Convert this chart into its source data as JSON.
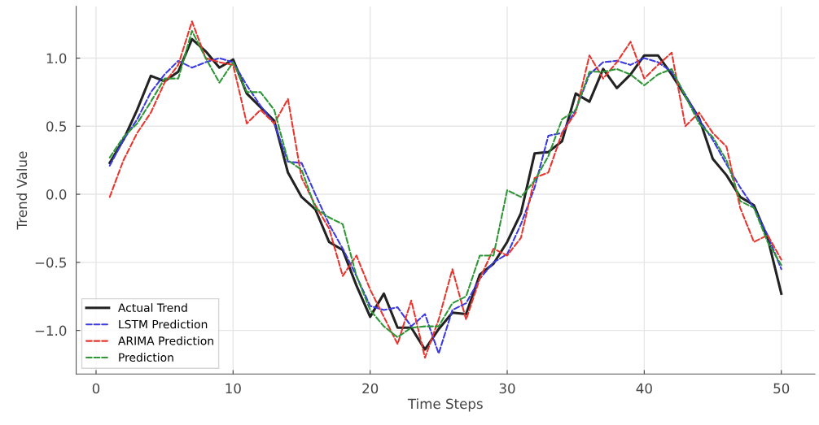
{
  "chart_data": {
    "type": "line",
    "xlabel": "Time Steps",
    "ylabel": "Trend Value",
    "x": [
      1,
      2,
      3,
      4,
      5,
      6,
      7,
      8,
      9,
      10,
      11,
      12,
      13,
      14,
      15,
      16,
      17,
      18,
      19,
      20,
      21,
      22,
      23,
      24,
      25,
      26,
      27,
      28,
      29,
      30,
      31,
      32,
      33,
      34,
      35,
      36,
      37,
      38,
      39,
      40,
      41,
      42,
      43,
      44,
      45,
      46,
      47,
      48,
      49,
      50
    ],
    "series": [
      {
        "name": "Actual Trend",
        "color": "#222222",
        "line_style": "solid",
        "values": [
          0.23,
          0.4,
          0.62,
          0.87,
          0.83,
          0.9,
          1.14,
          1.05,
          0.93,
          0.99,
          0.74,
          0.64,
          0.54,
          0.16,
          -0.02,
          -0.11,
          -0.35,
          -0.41,
          -0.67,
          -0.9,
          -0.73,
          -0.98,
          -0.98,
          -1.14,
          -0.99,
          -0.87,
          -0.88,
          -0.59,
          -0.51,
          -0.35,
          -0.14,
          0.3,
          0.31,
          0.39,
          0.74,
          0.68,
          0.92,
          0.78,
          0.88,
          1.02,
          1.02,
          0.88,
          0.72,
          0.56,
          0.26,
          0.14,
          -0.02,
          -0.08,
          -0.32,
          -0.73
        ]
      },
      {
        "name": "LSTM Prediction",
        "color": "#3a3ae0",
        "line_style": "dashed",
        "values": [
          0.21,
          0.4,
          0.55,
          0.75,
          0.88,
          0.98,
          0.93,
          0.97,
          1.0,
          0.97,
          0.8,
          0.65,
          0.52,
          0.24,
          0.23,
          0.0,
          -0.22,
          -0.4,
          -0.6,
          -0.82,
          -0.85,
          -0.83,
          -0.97,
          -0.88,
          -1.17,
          -0.85,
          -0.8,
          -0.62,
          -0.5,
          -0.44,
          -0.22,
          0.05,
          0.43,
          0.45,
          0.62,
          0.88,
          0.97,
          0.98,
          0.95,
          1.0,
          0.97,
          0.9,
          0.73,
          0.55,
          0.4,
          0.22,
          0.05,
          -0.1,
          -0.3,
          -0.55
        ]
      },
      {
        "name": "ARIMA Prediction",
        "color": "#e8352e",
        "line_style": "dashed",
        "values": [
          -0.02,
          0.25,
          0.45,
          0.6,
          0.82,
          0.95,
          1.27,
          1.0,
          0.97,
          0.95,
          0.52,
          0.62,
          0.52,
          0.7,
          0.12,
          -0.08,
          -0.25,
          -0.6,
          -0.45,
          -0.7,
          -0.9,
          -1.1,
          -0.78,
          -1.2,
          -0.92,
          -0.55,
          -0.92,
          -0.62,
          -0.4,
          -0.45,
          -0.32,
          0.12,
          0.16,
          0.45,
          0.6,
          1.02,
          0.85,
          0.97,
          1.12,
          0.85,
          0.95,
          1.04,
          0.5,
          0.6,
          0.45,
          0.35,
          -0.1,
          -0.35,
          -0.3,
          -0.48
        ]
      },
      {
        "name": "Prediction",
        "color": "#2e9637",
        "line_style": "dashed",
        "values": [
          0.27,
          0.42,
          0.52,
          0.68,
          0.85,
          0.85,
          1.2,
          1.0,
          0.82,
          0.97,
          0.75,
          0.75,
          0.62,
          0.25,
          0.18,
          -0.1,
          -0.17,
          -0.22,
          -0.6,
          -0.85,
          -0.97,
          -1.05,
          -0.98,
          -0.97,
          -0.97,
          -0.8,
          -0.75,
          -0.45,
          -0.45,
          0.03,
          -0.02,
          0.1,
          0.28,
          0.55,
          0.62,
          0.9,
          0.9,
          0.92,
          0.88,
          0.8,
          0.88,
          0.92,
          0.72,
          0.52,
          0.42,
          0.25,
          -0.05,
          -0.1,
          -0.35,
          -0.52
        ]
      }
    ],
    "xlim": [
      -1.45,
      52.45
    ],
    "xticks": [
      0,
      10,
      20,
      30,
      40,
      50
    ],
    "ylim": [
      -1.32,
      1.38
    ],
    "yticks": [
      {
        "value": -1,
        "label": "−1.0"
      },
      {
        "value": -0.5,
        "label": "−0.5"
      },
      {
        "value": 0,
        "label": "0.0"
      },
      {
        "value": 0.5,
        "label": "0.5"
      },
      {
        "value": 1,
        "label": "1.0"
      }
    ],
    "grid": true,
    "legend": "bottom left",
    "marker": "none"
  }
}
